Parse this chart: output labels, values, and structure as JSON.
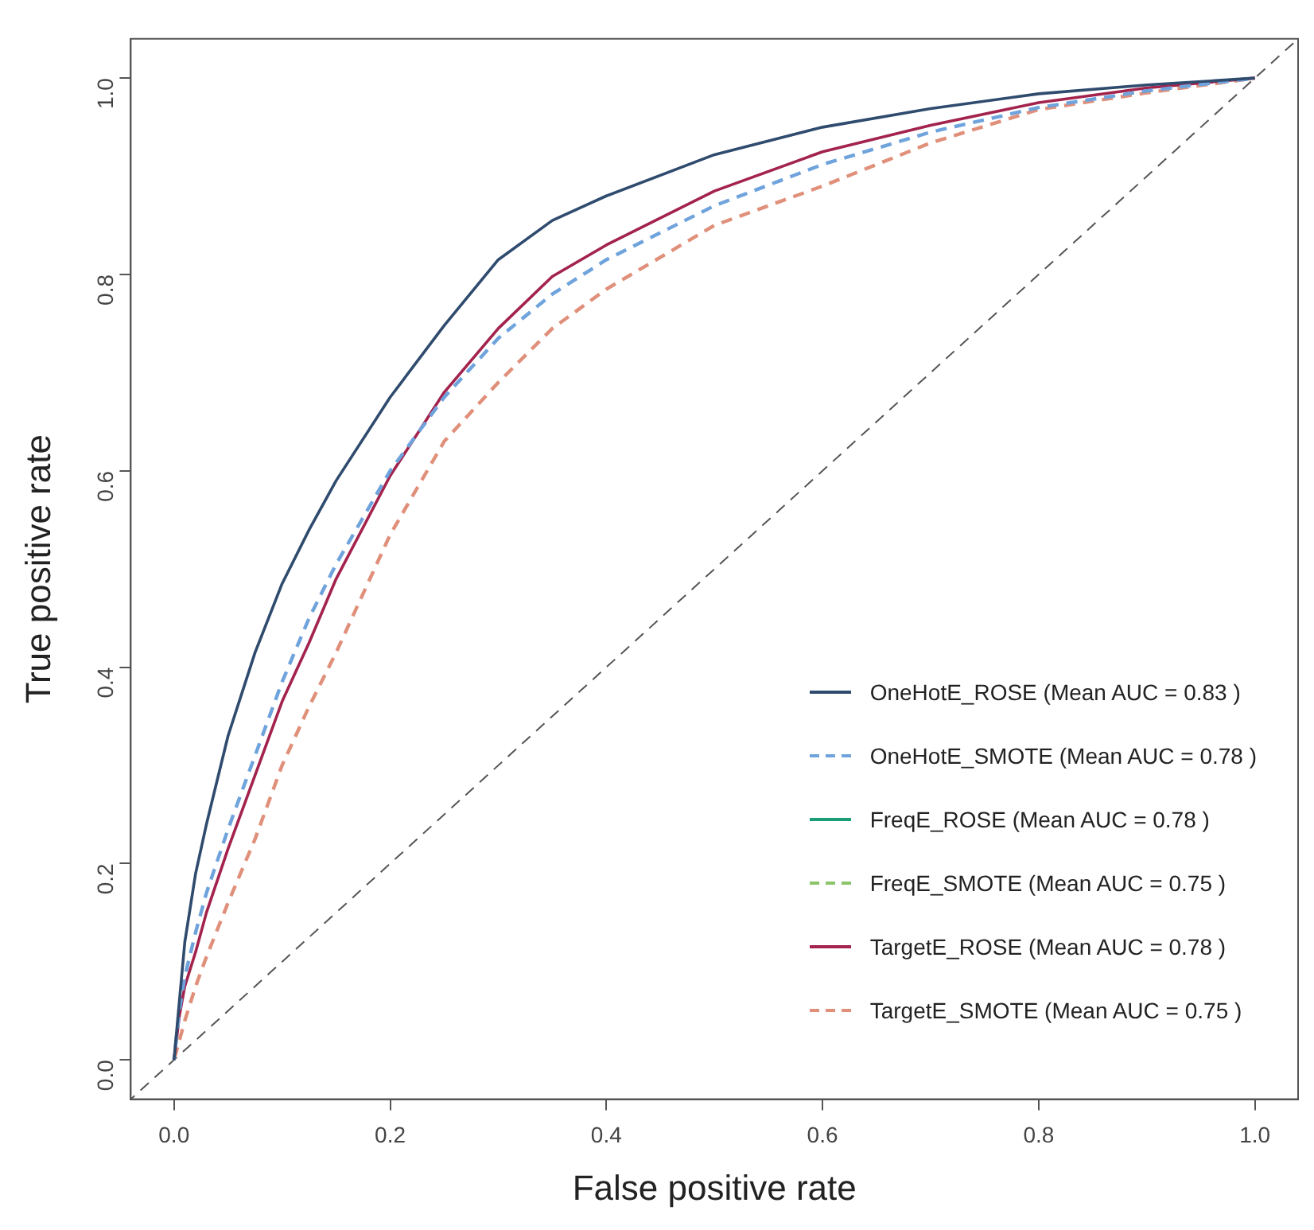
{
  "chart_data": {
    "type": "line",
    "xlabel": "False positive rate",
    "ylabel": "True positive rate",
    "x": [
      0,
      0.005,
      0.01,
      0.02,
      0.03,
      0.05,
      0.075,
      0.1,
      0.125,
      0.15,
      0.2,
      0.25,
      0.3,
      0.35,
      0.4,
      0.5,
      0.6,
      0.7,
      0.8,
      0.9,
      1
    ],
    "series": [
      {
        "name": "OneHotE_ROSE (Mean AUC = 0.83 )",
        "color": "#2f4b6e",
        "line_style": "solid",
        "values": [
          0,
          0.06,
          0.12,
          0.19,
          0.24,
          0.33,
          0.415,
          0.485,
          0.54,
          0.59,
          0.675,
          0.748,
          0.815,
          0.855,
          0.88,
          0.922,
          0.95,
          0.969,
          0.984,
          0.993,
          1
        ]
      },
      {
        "name": "OneHotE_SMOTE (Mean AUC = 0.78 )",
        "color": "#6fa3dc",
        "line_style": "dashed",
        "values": [
          0,
          0.05,
          0.085,
          0.13,
          0.17,
          0.235,
          0.31,
          0.385,
          0.45,
          0.505,
          0.6,
          0.675,
          0.735,
          0.78,
          0.815,
          0.87,
          0.912,
          0.945,
          0.97,
          0.987,
          1
        ]
      },
      {
        "name": "FreqE_ROSE (Mean AUC = 0.78 )",
        "color": "#1b9e77",
        "line_style": "solid",
        "values": [
          null,
          null,
          null,
          null,
          null,
          null,
          null,
          null,
          null,
          null,
          null,
          null,
          null,
          null,
          null,
          null,
          null,
          null,
          null,
          null,
          null
        ]
      },
      {
        "name": "FreqE_SMOTE (Mean AUC = 0.75 )",
        "color": "#8cc46a",
        "line_style": "dashed",
        "values": [
          null,
          null,
          null,
          null,
          null,
          null,
          null,
          null,
          null,
          null,
          null,
          null,
          null,
          null,
          null,
          null,
          null,
          null,
          null,
          null,
          null
        ]
      },
      {
        "name": "TargetE_ROSE (Mean AUC = 0.78 )",
        "color": "#a3234d",
        "line_style": "solid",
        "values": [
          0,
          0.045,
          0.075,
          0.11,
          0.15,
          0.215,
          0.29,
          0.365,
          0.425,
          0.49,
          0.595,
          0.68,
          0.745,
          0.798,
          0.83,
          0.885,
          0.925,
          0.952,
          0.975,
          0.99,
          1
        ]
      },
      {
        "name": "TargetE_SMOTE (Mean AUC = 0.75 )",
        "color": "#e0907a",
        "line_style": "dashed",
        "values": [
          0,
          0.02,
          0.04,
          0.075,
          0.105,
          0.16,
          0.225,
          0.3,
          0.36,
          0.415,
          0.535,
          0.63,
          0.69,
          0.745,
          0.785,
          0.85,
          0.89,
          0.934,
          0.968,
          0.985,
          1
        ]
      },
      {
        "color": "#555555",
        "line_style": "dashed",
        "x": [
          -0.04,
          1.04
        ],
        "values": [
          -0.04,
          1.04
        ]
      }
    ],
    "xlim": [
      -0.04,
      1.04
    ],
    "ylim": [
      -0.04,
      1.04
    ],
    "xticks": [
      {
        "value": 0,
        "label": "0.0"
      },
      0.2,
      0.4,
      0.6,
      0.8,
      {
        "value": 1,
        "label": "1.0"
      }
    ],
    "yticks": [
      {
        "value": 0,
        "label": "0.0"
      },
      0.2,
      0.4,
      0.6,
      0.8,
      {
        "value": 1,
        "label": "1.0"
      }
    ],
    "legend": "bottom right",
    "marker": "none"
  }
}
